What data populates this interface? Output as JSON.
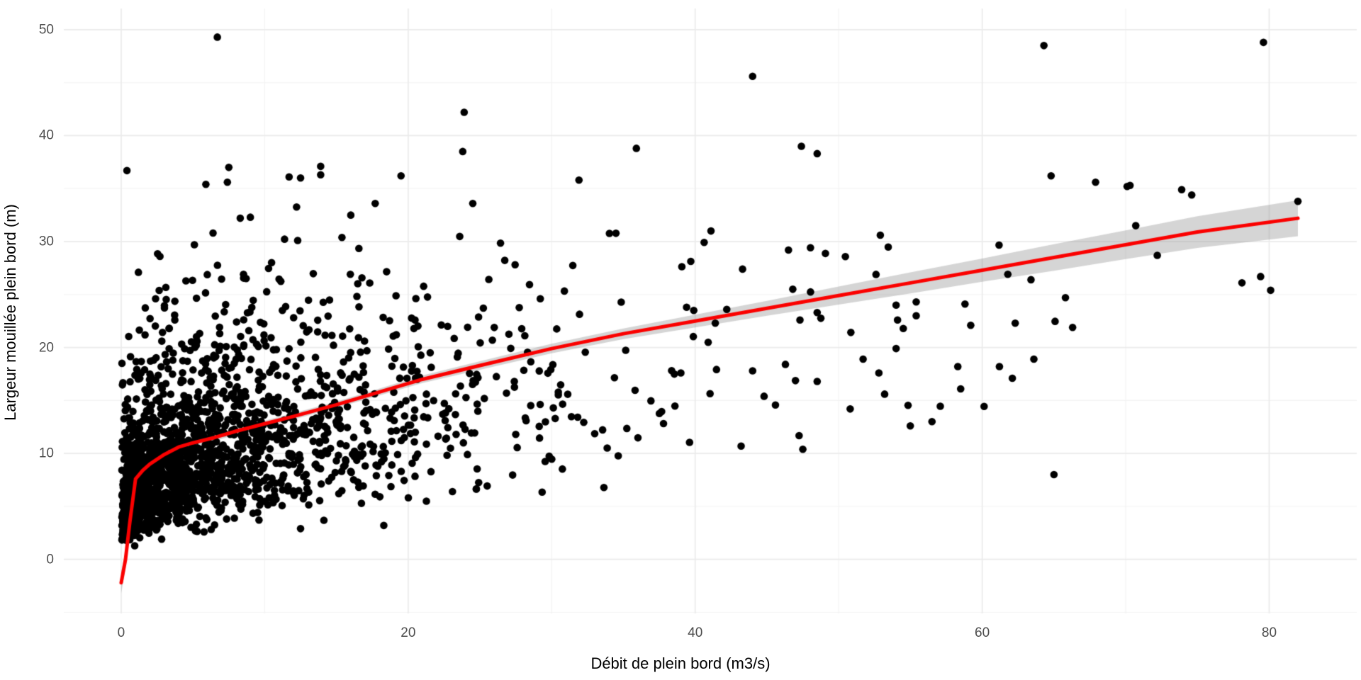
{
  "chart_data": {
    "type": "scatter",
    "title": "",
    "xlabel": "Débit de plein bord (m3/s)",
    "ylabel": "Largeur mouillée plein bord (m)",
    "legend": "none",
    "grid": true,
    "x_axis": {
      "ticks": [
        0,
        20,
        40,
        60,
        80
      ],
      "minor": [
        10,
        30,
        50,
        70
      ],
      "range": [
        -4.0,
        86.1
      ]
    },
    "y_axis": {
      "ticks": [
        0,
        10,
        20,
        30,
        40,
        50
      ],
      "minor": [
        -5,
        5,
        15,
        25,
        35,
        45
      ],
      "range": [
        -5.1,
        52.0
      ]
    },
    "trend": {
      "type": "gam-smooth",
      "points": [
        [
          0,
          -2.2
        ],
        [
          0.3,
          0
        ],
        [
          0.6,
          3.5
        ],
        [
          1,
          7.6
        ],
        [
          1.5,
          8.4
        ],
        [
          2,
          9.0
        ],
        [
          3,
          9.9
        ],
        [
          4,
          10.6
        ],
        [
          5,
          11.0
        ],
        [
          6.5,
          11.5
        ],
        [
          8,
          12.1
        ],
        [
          10,
          12.8
        ],
        [
          12,
          13.5
        ],
        [
          15,
          14.6
        ],
        [
          18,
          15.8
        ],
        [
          21,
          17.0
        ],
        [
          25,
          18.3
        ],
        [
          30,
          19.9
        ],
        [
          35,
          21.3
        ],
        [
          40,
          22.5
        ],
        [
          45,
          23.7
        ],
        [
          50,
          24.9
        ],
        [
          55,
          26.1
        ],
        [
          60,
          27.3
        ],
        [
          65,
          28.5
        ],
        [
          70,
          29.7
        ],
        [
          75,
          30.9
        ],
        [
          82,
          32.2
        ]
      ]
    },
    "band": {
      "half_widths": [
        [
          0,
          1.0
        ],
        [
          1,
          0.5
        ],
        [
          5,
          0.35
        ],
        [
          10,
          0.3
        ],
        [
          15,
          0.3
        ],
        [
          20,
          0.35
        ],
        [
          25,
          0.4
        ],
        [
          30,
          0.45
        ],
        [
          35,
          0.5
        ],
        [
          40,
          0.6
        ],
        [
          45,
          0.7
        ],
        [
          50,
          0.85
        ],
        [
          55,
          1.0
        ],
        [
          60,
          1.1
        ],
        [
          65,
          1.25
        ],
        [
          70,
          1.35
        ],
        [
          75,
          1.5
        ],
        [
          82,
          1.7
        ]
      ]
    },
    "points_explicit": [
      [
        0.4,
        36.7
      ],
      [
        6.7,
        49.3
      ],
      [
        5.9,
        35.4
      ],
      [
        7.4,
        35.6
      ],
      [
        7.5,
        37.0
      ],
      [
        11.7,
        36.1
      ],
      [
        12.5,
        36.0
      ],
      [
        13.9,
        37.1
      ],
      [
        13.9,
        36.3
      ],
      [
        19.5,
        36.2
      ],
      [
        23.9,
        42.2
      ],
      [
        23.8,
        38.5
      ],
      [
        35.9,
        38.8
      ],
      [
        31.9,
        35.8
      ],
      [
        44.0,
        45.6
      ],
      [
        47.4,
        39.0
      ],
      [
        48.5,
        38.3
      ],
      [
        64.3,
        48.5
      ],
      [
        79.6,
        48.8
      ],
      [
        82.0,
        33.8
      ],
      [
        73.9,
        34.9
      ],
      [
        74.6,
        34.4
      ],
      [
        70.3,
        35.3
      ],
      [
        64.8,
        36.2
      ],
      [
        67.9,
        35.6
      ],
      [
        70.1,
        35.2
      ],
      [
        17.7,
        33.6
      ],
      [
        41.1,
        31.0
      ],
      [
        46.5,
        29.2
      ],
      [
        43.3,
        27.4
      ],
      [
        52.9,
        30.6
      ],
      [
        52.6,
        26.9
      ],
      [
        46.8,
        25.5
      ],
      [
        39.4,
        23.8
      ],
      [
        39.9,
        23.5
      ],
      [
        42.2,
        23.6
      ],
      [
        41.4,
        22.3
      ],
      [
        47.3,
        22.6
      ],
      [
        48.5,
        23.3
      ],
      [
        54.0,
        24.0
      ],
      [
        55.4,
        24.3
      ],
      [
        55.4,
        23.0
      ],
      [
        54.1,
        22.6
      ],
      [
        54.5,
        21.8
      ],
      [
        58.8,
        24.1
      ],
      [
        59.2,
        22.1
      ],
      [
        62.3,
        22.3
      ],
      [
        63.4,
        26.4
      ],
      [
        65.8,
        24.7
      ],
      [
        66.3,
        21.9
      ],
      [
        70.7,
        31.5
      ],
      [
        72.2,
        28.7
      ],
      [
        78.1,
        26.1
      ],
      [
        79.4,
        26.7
      ],
      [
        80.1,
        25.4
      ],
      [
        39.0,
        17.6
      ],
      [
        44.0,
        17.8
      ],
      [
        44.8,
        15.4
      ],
      [
        48.5,
        16.8
      ],
      [
        51.7,
        18.9
      ],
      [
        52.8,
        17.6
      ],
      [
        53.2,
        15.6
      ],
      [
        54.0,
        19.9
      ],
      [
        58.3,
        18.2
      ],
      [
        61.2,
        18.2
      ],
      [
        62.1,
        17.1
      ],
      [
        63.6,
        18.9
      ],
      [
        58.5,
        16.1
      ],
      [
        50.8,
        14.2
      ],
      [
        56.5,
        13.0
      ],
      [
        43.2,
        10.7
      ],
      [
        47.5,
        10.4
      ],
      [
        65.0,
        8.0
      ],
      [
        18.3,
        3.2
      ],
      [
        12.5,
        2.9
      ],
      [
        1.2,
        27.1
      ],
      [
        2.7,
        28.6
      ],
      [
        5.1,
        29.7
      ],
      [
        6.4,
        30.8
      ],
      [
        9.0,
        32.3
      ],
      [
        16.0,
        32.5
      ],
      [
        24.5,
        33.6
      ]
    ],
    "point_clusters": [
      {
        "x_min": 0.05,
        "x_max": 0.6,
        "n": 170,
        "y_median": 5.5,
        "y_log_sd": 0.52,
        "y_min": 0.6,
        "y_max": 25
      },
      {
        "x_min": 0.6,
        "x_max": 1.2,
        "n": 170,
        "y_median": 6.5,
        "y_log_sd": 0.5,
        "y_min": 0.8,
        "y_max": 26
      },
      {
        "x_min": 1.2,
        "x_max": 2.0,
        "n": 190,
        "y_median": 7.2,
        "y_log_sd": 0.48,
        "y_min": 1.0,
        "y_max": 28
      },
      {
        "x_min": 2.0,
        "x_max": 3.0,
        "n": 190,
        "y_median": 8.2,
        "y_log_sd": 0.46,
        "y_min": 1.2,
        "y_max": 30
      },
      {
        "x_min": 3.0,
        "x_max": 5.0,
        "n": 290,
        "y_median": 9.2,
        "y_log_sd": 0.45,
        "y_min": 1.5,
        "y_max": 33
      },
      {
        "x_min": 5.0,
        "x_max": 8.0,
        "n": 290,
        "y_median": 10.2,
        "y_log_sd": 0.44,
        "y_min": 2.0,
        "y_max": 34
      },
      {
        "x_min": 8.0,
        "x_max": 12.0,
        "n": 250,
        "y_median": 11.2,
        "y_log_sd": 0.44,
        "y_min": 2.5,
        "y_max": 34
      },
      {
        "x_min": 12.0,
        "x_max": 17.0,
        "n": 185,
        "y_median": 12.8,
        "y_log_sd": 0.42,
        "y_min": 2.8,
        "y_max": 34
      },
      {
        "x_min": 17.0,
        "x_max": 23.0,
        "n": 110,
        "y_median": 14.5,
        "y_log_sd": 0.4,
        "y_min": 3.0,
        "y_max": 34
      },
      {
        "x_min": 23.0,
        "x_max": 30.0,
        "n": 70,
        "y_median": 16.0,
        "y_log_sd": 0.38,
        "y_min": 5.0,
        "y_max": 34
      },
      {
        "x_min": 30.0,
        "x_max": 40.0,
        "n": 42,
        "y_median": 18.0,
        "y_log_sd": 0.36,
        "y_min": 6.0,
        "y_max": 34
      },
      {
        "x_min": 40.0,
        "x_max": 50.0,
        "n": 12,
        "y_median": 20.0,
        "y_log_sd": 0.34,
        "y_min": 10.0,
        "y_max": 32
      },
      {
        "x_min": 50.0,
        "x_max": 60.0,
        "n": 6,
        "y_median": 22.0,
        "y_log_sd": 0.3,
        "y_min": 12.0,
        "y_max": 31
      },
      {
        "x_min": 60.0,
        "x_max": 70.0,
        "n": 4,
        "y_median": 24.0,
        "y_log_sd": 0.28,
        "y_min": 12.0,
        "y_max": 32
      }
    ],
    "seed": 7
  },
  "style": {
    "background": "#ffffff",
    "grid_major": "#ebebeb",
    "grid_minor": "#f3f3f3",
    "tick_label_color": "#4d4d4d",
    "axis_title_color": "#000000",
    "point_color": "#000000",
    "point_radius": 5.3,
    "line_color": "#fb0100",
    "line_width": 5,
    "band_color": "rgba(127,127,127,0.33)"
  }
}
